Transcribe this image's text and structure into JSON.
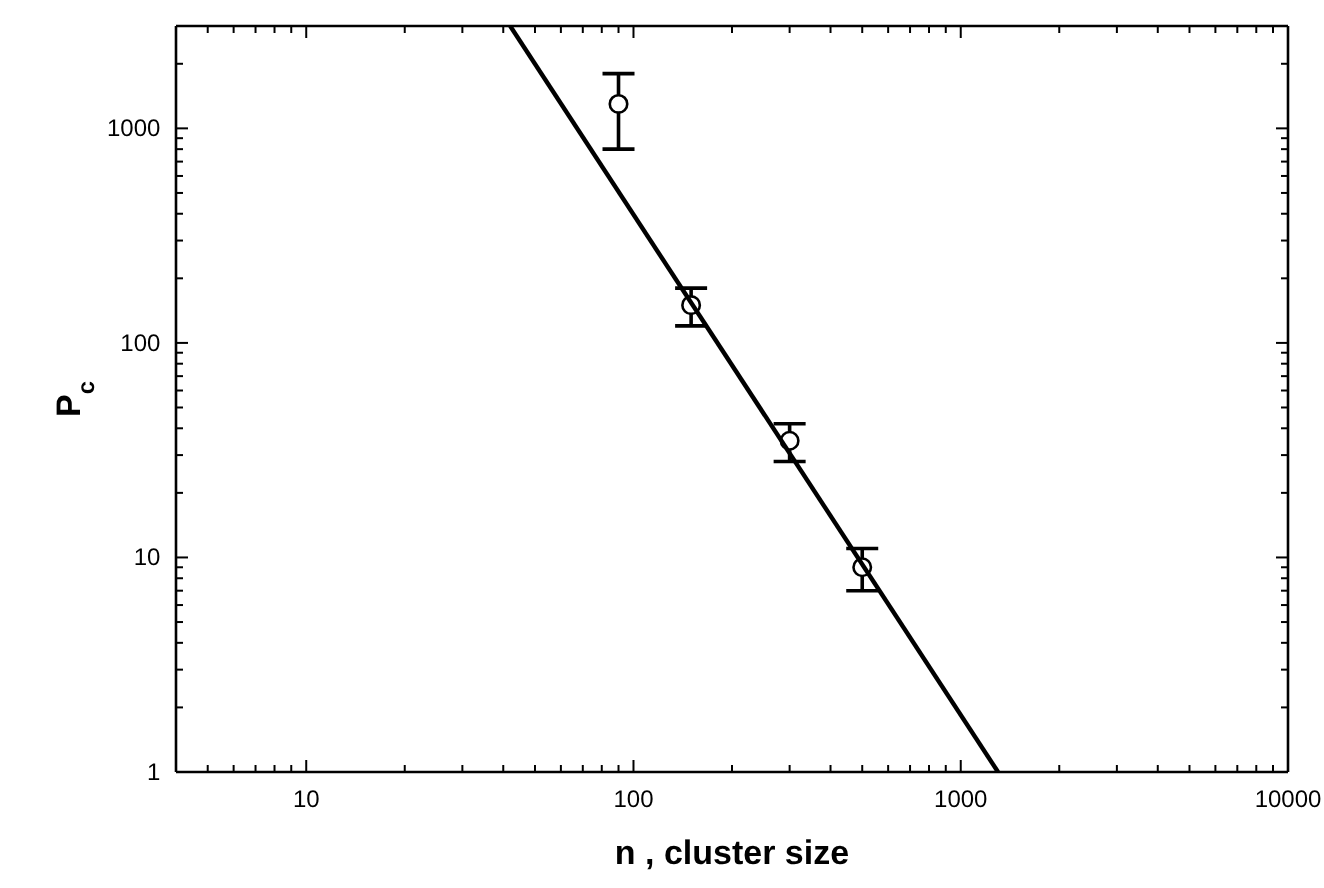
{
  "chart_data": {
    "type": "scatter",
    "xlabel": "n ,  cluster size",
    "ylabel": "P$_{c}$",
    "log": "xy",
    "grid": false,
    "marker": "circle",
    "xlim": [
      4,
      10000
    ],
    "ylim": [
      1,
      3000
    ],
    "xticks": [
      {
        "value": 5,
        "label": null
      },
      {
        "value": 6,
        "label": null
      },
      {
        "value": 7,
        "label": null
      },
      {
        "value": 8,
        "label": null
      },
      {
        "value": 9,
        "label": null
      },
      10,
      {
        "value": 20,
        "label": null
      },
      {
        "value": 30,
        "label": null
      },
      {
        "value": 40,
        "label": null
      },
      {
        "value": 50,
        "label": null
      },
      {
        "value": 60,
        "label": null
      },
      {
        "value": 70,
        "label": null
      },
      {
        "value": 80,
        "label": null
      },
      {
        "value": 90,
        "label": null
      },
      100,
      {
        "value": 200,
        "label": null
      },
      {
        "value": 300,
        "label": null
      },
      {
        "value": 400,
        "label": null
      },
      {
        "value": 500,
        "label": null
      },
      {
        "value": 600,
        "label": null
      },
      {
        "value": 700,
        "label": null
      },
      {
        "value": 800,
        "label": null
      },
      {
        "value": 900,
        "label": null
      },
      1000,
      {
        "value": 2000,
        "label": null
      },
      {
        "value": 3000,
        "label": null
      },
      {
        "value": 4000,
        "label": null
      },
      {
        "value": 5000,
        "label": null
      },
      {
        "value": 6000,
        "label": null
      },
      {
        "value": 7000,
        "label": null
      },
      {
        "value": 8000,
        "label": null
      },
      {
        "value": 9000,
        "label": null
      },
      10000
    ],
    "yticks": [
      1,
      {
        "value": 2,
        "label": null
      },
      {
        "value": 3,
        "label": null
      },
      {
        "value": 4,
        "label": null
      },
      {
        "value": 5,
        "label": null
      },
      {
        "value": 6,
        "label": null
      },
      {
        "value": 7,
        "label": null
      },
      {
        "value": 8,
        "label": null
      },
      {
        "value": 9,
        "label": null
      },
      10,
      {
        "value": 20,
        "label": null
      },
      {
        "value": 30,
        "label": null
      },
      {
        "value": 40,
        "label": null
      },
      {
        "value": 50,
        "label": null
      },
      {
        "value": 60,
        "label": null
      },
      {
        "value": 70,
        "label": null
      },
      {
        "value": 80,
        "label": null
      },
      {
        "value": 90,
        "label": null
      },
      100,
      {
        "value": 200,
        "label": null
      },
      {
        "value": 300,
        "label": null
      },
      {
        "value": 400,
        "label": null
      },
      {
        "value": 500,
        "label": null
      },
      {
        "value": 600,
        "label": null
      },
      {
        "value": 700,
        "label": null
      },
      {
        "value": 800,
        "label": null
      },
      {
        "value": 900,
        "label": null
      },
      1000,
      {
        "value": 2000,
        "label": null
      },
      {
        "value": 3000,
        "label": null
      }
    ],
    "series": [
      {
        "color": "#000000",
        "x": [
          90,
          150,
          300,
          500
        ],
        "values": [
          1300,
          150,
          35,
          9
        ],
        "errors": [
          [
            800,
            1800
          ],
          [
            120,
            180
          ],
          [
            28,
            42
          ],
          [
            7,
            11
          ]
        ]
      },
      {
        "type": "line",
        "color": "#000000",
        "marker": "none",
        "line_style": "solid",
        "x": [
          42,
          1300
        ],
        "values": [
          3000,
          1
        ]
      }
    ]
  }
}
